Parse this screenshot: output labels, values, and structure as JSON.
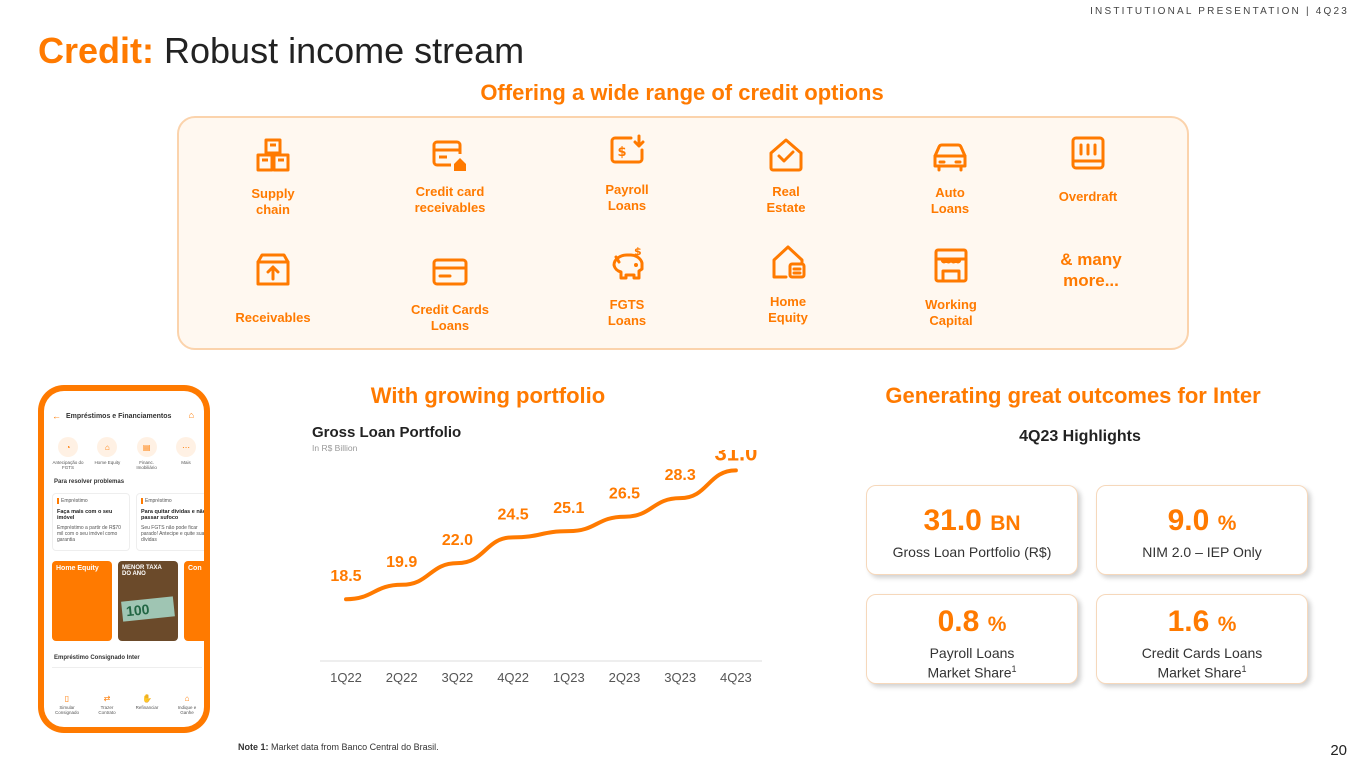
{
  "header": {
    "tag": "INSTITUTIONAL PRESENTATION | 4Q23"
  },
  "title": {
    "accent": "Credit:",
    "text": " Robust income stream"
  },
  "offerings": {
    "heading": "Offering a wide range of credit options",
    "items": [
      {
        "label": "Supply chain",
        "icon": "supply-chain-icon"
      },
      {
        "label": "Credit card receivables",
        "icon": "credit-card-receivables-icon"
      },
      {
        "label": "Payroll Loans",
        "icon": "payroll-icon"
      },
      {
        "label": "Real Estate",
        "icon": "real-estate-icon"
      },
      {
        "label": "Auto Loans",
        "icon": "car-icon"
      },
      {
        "label": "Overdraft",
        "icon": "overdraft-icon"
      },
      {
        "label": "Receivables",
        "icon": "receivables-icon"
      },
      {
        "label": "Credit Cards Loans",
        "icon": "credit-card-icon"
      },
      {
        "label": "FGTS Loans",
        "icon": "piggy-bank-icon"
      },
      {
        "label": "Home Equity",
        "icon": "home-equity-icon"
      },
      {
        "label": "Working Capital",
        "icon": "store-icon"
      }
    ],
    "more": "& many more..."
  },
  "phone": {
    "header": "Empréstimos e Financiamentos",
    "icons": [
      "Antecipação do FGTS",
      "Home Equity",
      "Financ. Imobiliário",
      "Mais"
    ],
    "section": "Para resolver problemas",
    "card1": {
      "tag": "Empréstimo",
      "title": "Faça mais com o seu imóvel",
      "body": "Empréstimo a partir de R$70 mil com o seu imóvel como garantia"
    },
    "card2": {
      "tag": "Empréstimo",
      "title": "Para quitar dívidas e não passar sufoco",
      "body": "Seu FGTS não pode ficar parado! Antecipe e quite suas dívidas"
    },
    "promo1": "Home Equity",
    "promo2": "MENOR TAXA DO ANO",
    "promo3": "Con",
    "bottom": "Empréstimo Consignado Inter",
    "nav": [
      "Simular Consignado",
      "Trazer Contrato",
      "Refinanciar",
      "Indique e Ganhe"
    ]
  },
  "portfolio": {
    "heading": "With growing portfolio"
  },
  "chart_data": {
    "type": "line",
    "title": "Gross Loan Portfolio",
    "subtitle": "In R$ Billion",
    "categories": [
      "1Q22",
      "2Q22",
      "3Q22",
      "4Q22",
      "1Q23",
      "2Q23",
      "3Q23",
      "4Q23"
    ],
    "values": [
      18.5,
      19.9,
      22.0,
      24.5,
      25.1,
      26.5,
      28.3,
      31.0
    ],
    "labels": [
      "18.5",
      "19.9",
      "22.0",
      "24.5",
      "25.1",
      "26.5",
      "28.3",
      "31.0"
    ],
    "color": "#ff7a00",
    "ylim": [
      16,
      32
    ]
  },
  "outcomes": {
    "heading": "Generating great outcomes for Inter",
    "subheading": "4Q23 Highlights",
    "kpis": [
      {
        "value": "31.0",
        "unit": "BN",
        "label": "Gross Loan Portfolio (R$)"
      },
      {
        "value": "9.0",
        "unit": "%",
        "label": "NIM 2.0 – IEP Only"
      },
      {
        "value": "0.8",
        "unit": "%",
        "label": "Payroll Loans",
        "label2": "Market Share",
        "sup": "1"
      },
      {
        "value": "1.6",
        "unit": "%",
        "label": "Credit Cards Loans",
        "label2": "Market Share",
        "sup": "1"
      }
    ]
  },
  "footer": {
    "note_label": "Note 1:",
    "note": "Market data from Banco Central do Brasil.",
    "page": "20"
  },
  "colors": {
    "accent": "#ff7a00",
    "light": "#fbd3ac"
  }
}
